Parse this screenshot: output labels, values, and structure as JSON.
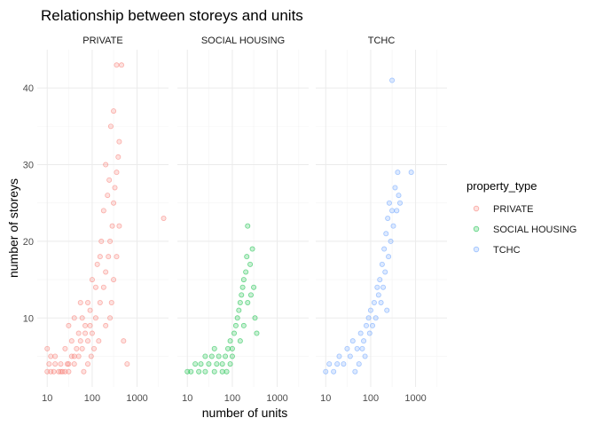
{
  "chart_data": {
    "type": "scatter",
    "title": "Relationship between storeys and units",
    "xlabel": "number of units",
    "ylabel": "number of storeys",
    "x_scale": "log10",
    "xlim": [
      6,
      5000
    ],
    "ylim": [
      1,
      45
    ],
    "x_ticks": [
      10,
      100,
      1000
    ],
    "x_tick_labels": [
      "10",
      "100",
      "1000"
    ],
    "y_ticks": [
      10,
      20,
      30,
      40
    ],
    "y_tick_labels": [
      "10",
      "20",
      "30",
      "40"
    ],
    "grid": true,
    "legend": {
      "title": "property_type",
      "position": "right",
      "entries": [
        "PRIVATE",
        "SOCIAL HOUSING",
        "TCHC"
      ]
    },
    "facets": [
      {
        "name": "PRIVATE",
        "color": "#F8766D",
        "points": [
          [
            10,
            3
          ],
          [
            11,
            4
          ],
          [
            12,
            3
          ],
          [
            14,
            3
          ],
          [
            15,
            4
          ],
          [
            18,
            3
          ],
          [
            20,
            4
          ],
          [
            22,
            3
          ],
          [
            25,
            3
          ],
          [
            28,
            4
          ],
          [
            30,
            3
          ],
          [
            35,
            5
          ],
          [
            40,
            4
          ],
          [
            45,
            6
          ],
          [
            50,
            5
          ],
          [
            55,
            7
          ],
          [
            60,
            6
          ],
          [
            70,
            8
          ],
          [
            80,
            7
          ],
          [
            90,
            9
          ],
          [
            100,
            8
          ],
          [
            120,
            10
          ],
          [
            150,
            12
          ],
          [
            180,
            14
          ],
          [
            200,
            16
          ],
          [
            230,
            18
          ],
          [
            250,
            20
          ],
          [
            280,
            22
          ],
          [
            300,
            25
          ],
          [
            320,
            27
          ],
          [
            350,
            29
          ],
          [
            380,
            31
          ],
          [
            400,
            33
          ],
          [
            260,
            35
          ],
          [
            300,
            37
          ],
          [
            350,
            43
          ],
          [
            450,
            43
          ],
          [
            200,
            30
          ],
          [
            150,
            18
          ],
          [
            120,
            14
          ],
          [
            90,
            11
          ],
          [
            70,
            9
          ],
          [
            40,
            5
          ],
          [
            30,
            4
          ],
          [
            20,
            3
          ],
          [
            3900,
            23
          ],
          [
            10,
            6
          ],
          [
            12,
            5
          ],
          [
            15,
            5
          ],
          [
            25,
            6
          ],
          [
            35,
            7
          ],
          [
            50,
            8
          ],
          [
            60,
            10
          ],
          [
            80,
            12
          ],
          [
            100,
            15
          ],
          [
            130,
            17
          ],
          [
            160,
            20
          ],
          [
            180,
            24
          ],
          [
            220,
            26
          ],
          [
            240,
            28
          ],
          [
            270,
            12
          ],
          [
            300,
            15
          ],
          [
            350,
            18
          ],
          [
            400,
            22
          ],
          [
            110,
            6
          ],
          [
            140,
            7
          ],
          [
            200,
            9
          ],
          [
            250,
            10
          ],
          [
            500,
            7
          ],
          [
            600,
            4
          ],
          [
            30,
            9
          ],
          [
            40,
            10
          ],
          [
            55,
            12
          ],
          [
            65,
            3
          ],
          [
            80,
            4
          ],
          [
            95,
            5
          ]
        ]
      },
      {
        "name": "SOCIAL HOUSING",
        "color": "#00BA38",
        "points": [
          [
            10,
            3
          ],
          [
            12,
            3
          ],
          [
            15,
            4
          ],
          [
            18,
            3
          ],
          [
            20,
            4
          ],
          [
            25,
            3
          ],
          [
            30,
            4
          ],
          [
            35,
            5
          ],
          [
            40,
            3
          ],
          [
            45,
            4
          ],
          [
            50,
            5
          ],
          [
            60,
            4
          ],
          [
            70,
            5
          ],
          [
            80,
            6
          ],
          [
            90,
            7
          ],
          [
            100,
            6
          ],
          [
            110,
            8
          ],
          [
            120,
            9
          ],
          [
            130,
            10
          ],
          [
            140,
            11
          ],
          [
            150,
            12
          ],
          [
            160,
            13
          ],
          [
            170,
            14
          ],
          [
            180,
            15
          ],
          [
            200,
            16
          ],
          [
            210,
            18
          ],
          [
            220,
            22
          ],
          [
            250,
            17
          ],
          [
            280,
            19
          ],
          [
            300,
            14
          ],
          [
            320,
            10
          ],
          [
            350,
            8
          ],
          [
            150,
            7
          ],
          [
            100,
            5
          ],
          [
            60,
            3
          ],
          [
            40,
            6
          ],
          [
            25,
            5
          ],
          [
            180,
            9
          ],
          [
            220,
            12
          ],
          [
            260,
            13
          ],
          [
            90,
            4
          ],
          [
            75,
            3
          ]
        ]
      },
      {
        "name": "TCHC",
        "color": "#619CFF",
        "points": [
          [
            10,
            3
          ],
          [
            12,
            4
          ],
          [
            15,
            3
          ],
          [
            18,
            4
          ],
          [
            20,
            5
          ],
          [
            25,
            4
          ],
          [
            30,
            6
          ],
          [
            35,
            5
          ],
          [
            40,
            7
          ],
          [
            50,
            6
          ],
          [
            60,
            8
          ],
          [
            70,
            7
          ],
          [
            80,
            9
          ],
          [
            90,
            10
          ],
          [
            100,
            11
          ],
          [
            120,
            12
          ],
          [
            140,
            14
          ],
          [
            160,
            15
          ],
          [
            180,
            17
          ],
          [
            200,
            19
          ],
          [
            220,
            21
          ],
          [
            240,
            23
          ],
          [
            260,
            25
          ],
          [
            300,
            24
          ],
          [
            350,
            27
          ],
          [
            400,
            29
          ],
          [
            450,
            25
          ],
          [
            800,
            29
          ],
          [
            300,
            41
          ],
          [
            150,
            13
          ],
          [
            110,
            9
          ],
          [
            75,
            5
          ],
          [
            55,
            4
          ],
          [
            45,
            3
          ],
          [
            130,
            10
          ],
          [
            170,
            12
          ],
          [
            210,
            16
          ],
          [
            250,
            18
          ],
          [
            280,
            20
          ],
          [
            320,
            22
          ],
          [
            380,
            24
          ],
          [
            420,
            26
          ],
          [
            190,
            14
          ],
          [
            230,
            11
          ],
          [
            95,
            8
          ],
          [
            65,
            6
          ]
        ]
      }
    ]
  }
}
